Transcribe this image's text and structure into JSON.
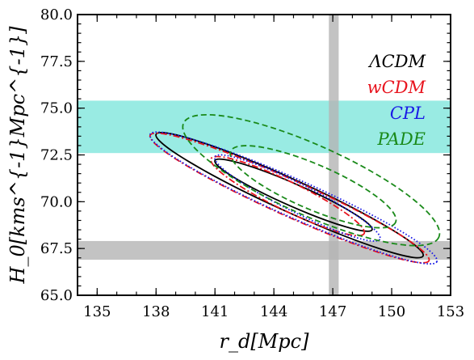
{
  "chart_data": {
    "type": "contour",
    "title": "",
    "xlabel": "r_d[Mpc]",
    "ylabel": "H_0[kms^{-1}Mpc^{-1}]",
    "xlim": [
      134,
      153
    ],
    "ylim": [
      65.0,
      80.0
    ],
    "xticks": [
      "135",
      "138",
      "141",
      "144",
      "147",
      "150",
      "153"
    ],
    "yticks": [
      "65.0",
      "67.5",
      "70.0",
      "72.5",
      "75.0",
      "77.5",
      "80.0"
    ],
    "grid": false,
    "legend": {
      "placement": "right",
      "entries": [
        {
          "label": "ΛCDM",
          "color": "#000000"
        },
        {
          "label": "wCDM",
          "color": "#e8141e"
        },
        {
          "label": "CPL",
          "color": "#1a1ae6"
        },
        {
          "label": "PADE",
          "color": "#1a8a1a"
        }
      ]
    },
    "bands": [
      {
        "axis": "y",
        "range": [
          72.6,
          75.4
        ],
        "color": "#7fe6dc"
      },
      {
        "axis": "y",
        "range": [
          66.9,
          67.9
        ],
        "color": "#b4b4b4"
      },
      {
        "axis": "x",
        "range": [
          146.8,
          147.3
        ],
        "color": "#b4b4b4"
      }
    ],
    "series": [
      {
        "name": "ΛCDM",
        "color": "#000000",
        "style": "solid",
        "contours": [
          {
            "level": "inner",
            "center": [
              145.0,
              70.35
            ],
            "major_end": [
              149.0,
              68.5
            ],
            "minor_half": 0.65
          },
          {
            "level": "outer",
            "center": [
              144.8,
              70.35
            ],
            "major_end": [
              151.6,
              67.1
            ],
            "minor_half": 0.95
          }
        ]
      },
      {
        "name": "wCDM",
        "color": "#e8141e",
        "style": "dashdot",
        "contours": [
          {
            "level": "inner",
            "center": [
              144.7,
              70.3
            ],
            "major_end": [
              148.6,
              68.3
            ],
            "minor_half": 0.85
          },
          {
            "level": "outer",
            "center": [
              144.8,
              70.2
            ],
            "major_end": [
              151.9,
              66.85
            ],
            "minor_half": 1.05
          }
        ]
      },
      {
        "name": "CPL",
        "color": "#1a1ae6",
        "style": "dotted",
        "contours": [
          {
            "level": "inner",
            "center": [
              145.2,
              70.2
            ],
            "major_end": [
              149.4,
              68.0
            ],
            "minor_half": 0.85
          },
          {
            "level": "outer",
            "center": [
              145.0,
              70.2
            ],
            "major_end": [
              152.3,
              66.8
            ],
            "minor_half": 1.1
          }
        ]
      },
      {
        "name": "PADE",
        "color": "#1a8a1a",
        "style": "dashed",
        "contours": [
          {
            "level": "inner",
            "center": [
              146.0,
              70.8
            ],
            "major_end": [
              150.2,
              68.9
            ],
            "minor_half": 1.3
          },
          {
            "level": "outer",
            "center": [
              145.9,
              71.15
            ],
            "major_end": [
              152.4,
              68.1
            ],
            "minor_half": 2.05
          }
        ]
      }
    ]
  }
}
